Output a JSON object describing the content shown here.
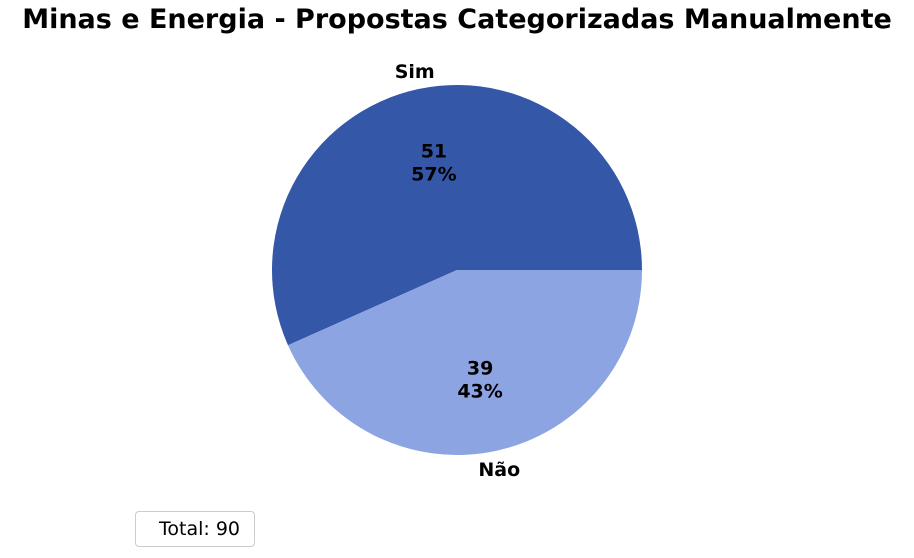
{
  "chart_data": {
    "type": "pie",
    "title": "Minas e Energia - Propostas Categorizadas Manualmente",
    "categories": [
      "Sim",
      "Não"
    ],
    "values": [
      51,
      39
    ],
    "percent_labels": [
      "57%",
      "43%"
    ],
    "colors": [
      "#3457a8",
      "#8da4e2"
    ],
    "legend": {
      "text": "Total: 90",
      "placement": "lower-left"
    }
  }
}
